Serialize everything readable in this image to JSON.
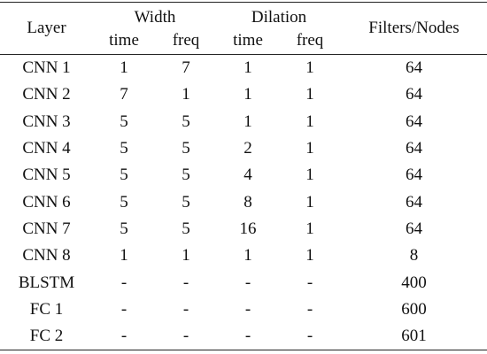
{
  "table": {
    "header": {
      "layer": "Layer",
      "width": "Width",
      "dilation": "Dilation",
      "filters": "Filters/Nodes",
      "sub": [
        "time",
        "freq",
        "time",
        "freq"
      ]
    },
    "rows": [
      [
        "CNN 1",
        1,
        7,
        1,
        1,
        64
      ],
      [
        "CNN 2",
        7,
        1,
        1,
        1,
        64
      ],
      [
        "CNN 3",
        5,
        5,
        1,
        1,
        64
      ],
      [
        "CNN 4",
        5,
        5,
        2,
        1,
        64
      ],
      [
        "CNN 5",
        5,
        5,
        4,
        1,
        64
      ],
      [
        "CNN 6",
        5,
        5,
        8,
        1,
        64
      ],
      [
        "CNN 7",
        5,
        5,
        16,
        1,
        64
      ],
      [
        "CNN 8",
        1,
        1,
        1,
        1,
        8
      ],
      [
        "BLSTM",
        "-",
        "-",
        "-",
        "-",
        400
      ],
      [
        "FC 1",
        "-",
        "-",
        "-",
        "-",
        600
      ],
      [
        "FC 2",
        "-",
        "-",
        "-",
        "-",
        601
      ]
    ]
  }
}
